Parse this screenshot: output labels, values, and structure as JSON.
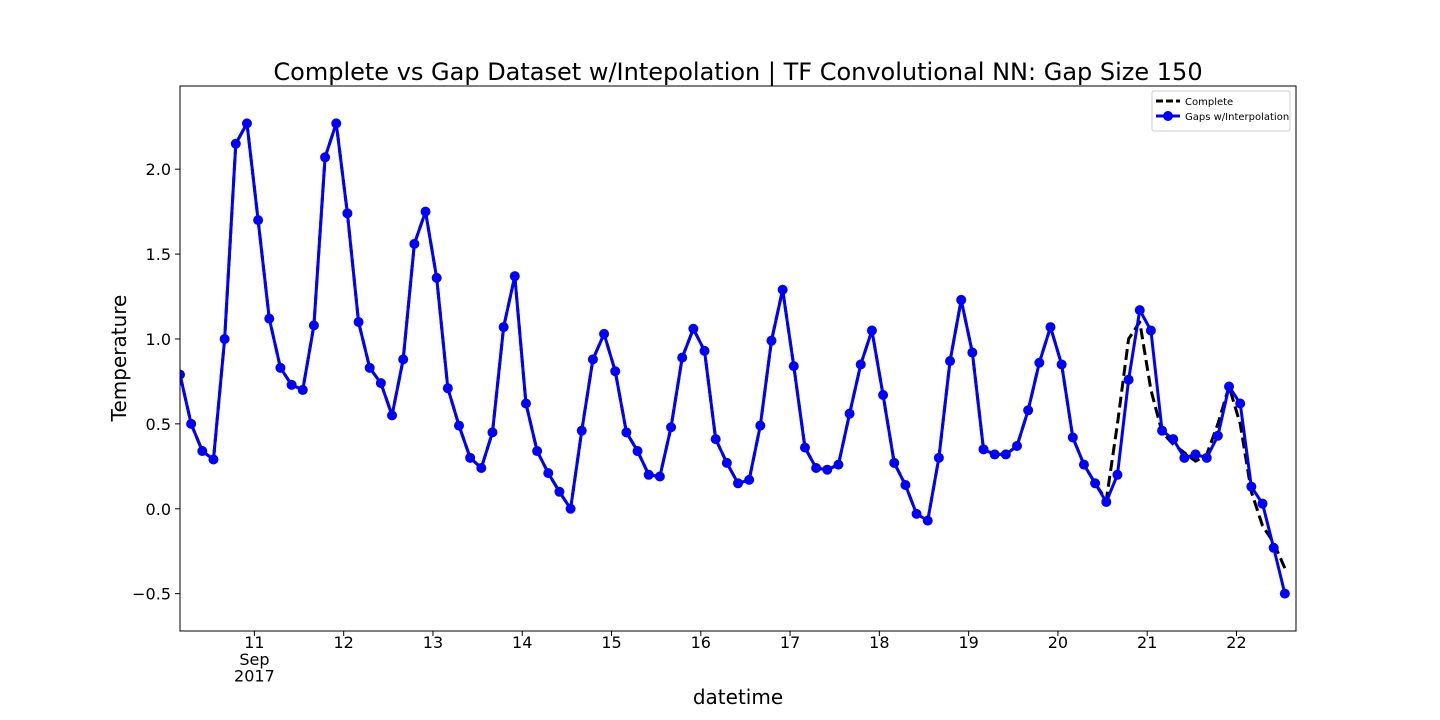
{
  "chart_data": {
    "type": "line",
    "title": "Complete vs Gap Dataset w/Intepolation | TF Convolutional NN: Gap Size 150",
    "x_label": "datetime",
    "y_label": "Temperature",
    "x": [
      "2017-09-10T04:00",
      "2017-09-10T07:00",
      "2017-09-10T10:00",
      "2017-09-10T13:00",
      "2017-09-10T16:00",
      "2017-09-10T19:00",
      "2017-09-10T22:00",
      "2017-09-11T01:00",
      "2017-09-11T04:00",
      "2017-09-11T07:00",
      "2017-09-11T10:00",
      "2017-09-11T13:00",
      "2017-09-11T16:00",
      "2017-09-11T19:00",
      "2017-09-11T22:00",
      "2017-09-12T01:00",
      "2017-09-12T04:00",
      "2017-09-12T07:00",
      "2017-09-12T10:00",
      "2017-09-12T13:00",
      "2017-09-12T16:00",
      "2017-09-12T19:00",
      "2017-09-12T22:00",
      "2017-09-13T01:00",
      "2017-09-13T04:00",
      "2017-09-13T07:00",
      "2017-09-13T10:00",
      "2017-09-13T13:00",
      "2017-09-13T16:00",
      "2017-09-13T19:00",
      "2017-09-13T22:00",
      "2017-09-14T01:00",
      "2017-09-14T04:00",
      "2017-09-14T07:00",
      "2017-09-14T10:00",
      "2017-09-14T13:00",
      "2017-09-14T16:00",
      "2017-09-14T19:00",
      "2017-09-14T22:00",
      "2017-09-15T01:00",
      "2017-09-15T04:00",
      "2017-09-15T07:00",
      "2017-09-15T10:00",
      "2017-09-15T13:00",
      "2017-09-15T16:00",
      "2017-09-15T19:00",
      "2017-09-15T22:00",
      "2017-09-16T01:00",
      "2017-09-16T04:00",
      "2017-09-16T07:00",
      "2017-09-16T10:00",
      "2017-09-16T13:00",
      "2017-09-16T16:00",
      "2017-09-16T19:00",
      "2017-09-16T22:00",
      "2017-09-17T01:00",
      "2017-09-17T04:00",
      "2017-09-17T07:00",
      "2017-09-17T10:00",
      "2017-09-17T13:00",
      "2017-09-17T16:00",
      "2017-09-17T19:00",
      "2017-09-17T22:00",
      "2017-09-18T01:00",
      "2017-09-18T04:00",
      "2017-09-18T07:00",
      "2017-09-18T10:00",
      "2017-09-18T13:00",
      "2017-09-18T16:00",
      "2017-09-18T19:00",
      "2017-09-18T22:00",
      "2017-09-19T01:00",
      "2017-09-19T04:00",
      "2017-09-19T07:00",
      "2017-09-19T10:00",
      "2017-09-19T13:00",
      "2017-09-19T16:00",
      "2017-09-19T19:00",
      "2017-09-19T22:00",
      "2017-09-20T01:00",
      "2017-09-20T04:00",
      "2017-09-20T07:00",
      "2017-09-20T10:00",
      "2017-09-20T13:00",
      "2017-09-20T16:00",
      "2017-09-20T19:00",
      "2017-09-20T22:00",
      "2017-09-21T01:00",
      "2017-09-21T04:00",
      "2017-09-21T07:00",
      "2017-09-21T10:00",
      "2017-09-21T13:00",
      "2017-09-21T16:00",
      "2017-09-21T19:00",
      "2017-09-21T22:00",
      "2017-09-22T01:00",
      "2017-09-22T04:00",
      "2017-09-22T07:00",
      "2017-09-22T10:00",
      "2017-09-22T13:00"
    ],
    "series": [
      {
        "name": "Complete",
        "color": "#000000",
        "style": "dashed",
        "values": [
          0.79,
          0.5,
          0.34,
          0.29,
          1.0,
          2.15,
          2.27,
          1.7,
          1.12,
          0.83,
          0.73,
          0.7,
          1.08,
          2.07,
          2.27,
          1.74,
          1.1,
          0.83,
          0.74,
          0.55,
          0.88,
          1.56,
          1.75,
          1.36,
          0.71,
          0.49,
          0.3,
          0.24,
          0.45,
          1.07,
          1.37,
          0.62,
          0.34,
          0.21,
          0.1,
          0.0,
          0.46,
          0.88,
          1.03,
          0.81,
          0.45,
          0.34,
          0.2,
          0.19,
          0.48,
          0.89,
          1.06,
          0.93,
          0.41,
          0.27,
          0.15,
          0.17,
          0.49,
          0.99,
          1.29,
          0.84,
          0.36,
          0.24,
          0.23,
          0.26,
          0.56,
          0.85,
          1.05,
          0.67,
          0.27,
          0.14,
          -0.03,
          -0.07,
          0.3,
          0.87,
          1.23,
          0.92,
          0.35,
          0.32,
          0.32,
          0.37,
          0.58,
          0.86,
          1.07,
          0.85,
          0.42,
          0.26,
          0.15,
          0.05,
          0.5,
          1.0,
          1.1,
          0.7,
          0.45,
          0.38,
          0.33,
          0.28,
          0.32,
          0.5,
          0.72,
          0.5,
          0.1,
          -0.1,
          -0.2,
          -0.35
        ]
      },
      {
        "name": "Gaps w/Interpolation",
        "color": "#0000ff",
        "style": "solid",
        "markers": true,
        "values": [
          0.79,
          0.5,
          0.34,
          0.29,
          1.0,
          2.15,
          2.27,
          1.7,
          1.12,
          0.83,
          0.73,
          0.7,
          1.08,
          2.07,
          2.27,
          1.74,
          1.1,
          0.83,
          0.74,
          0.55,
          0.88,
          1.56,
          1.75,
          1.36,
          0.71,
          0.49,
          0.3,
          0.24,
          0.45,
          1.07,
          1.37,
          0.62,
          0.34,
          0.21,
          0.1,
          0.0,
          0.46,
          0.88,
          1.03,
          0.81,
          0.45,
          0.34,
          0.2,
          0.19,
          0.48,
          0.89,
          1.06,
          0.93,
          0.41,
          0.27,
          0.15,
          0.17,
          0.49,
          0.99,
          1.29,
          0.84,
          0.36,
          0.24,
          0.23,
          0.26,
          0.56,
          0.85,
          1.05,
          0.67,
          0.27,
          0.14,
          -0.03,
          -0.07,
          0.3,
          0.87,
          1.23,
          0.92,
          0.35,
          0.32,
          0.32,
          0.37,
          0.58,
          0.86,
          1.07,
          0.85,
          0.42,
          0.26,
          0.15,
          0.04,
          0.2,
          0.76,
          1.17,
          1.05,
          0.46,
          0.41,
          0.3,
          0.32,
          0.3,
          0.43,
          0.72,
          0.62,
          0.13,
          0.03,
          -0.23,
          -0.5
        ]
      }
    ],
    "xlim": [
      "2017-09-10T04:00",
      "2017-09-22T16:00"
    ],
    "xticks": [
      {
        "value": "2017-09-11T00:00",
        "label": "11\nSep\n2017"
      },
      {
        "value": "2017-09-12T00:00",
        "label": "12"
      },
      {
        "value": "2017-09-13T00:00",
        "label": "13"
      },
      {
        "value": "2017-09-14T00:00",
        "label": "14"
      },
      {
        "value": "2017-09-15T00:00",
        "label": "15"
      },
      {
        "value": "2017-09-16T00:00",
        "label": "16"
      },
      {
        "value": "2017-09-17T00:00",
        "label": "17"
      },
      {
        "value": "2017-09-18T00:00",
        "label": "18"
      },
      {
        "value": "2017-09-19T00:00",
        "label": "19"
      },
      {
        "value": "2017-09-20T00:00",
        "label": "20"
      },
      {
        "value": "2017-09-21T00:00",
        "label": "21"
      },
      {
        "value": "2017-09-22T00:00",
        "label": "22"
      }
    ],
    "ylim": [
      -0.72,
      2.49
    ],
    "yticks": [
      {
        "value": -0.5,
        "label": "−0.5"
      },
      {
        "value": 0,
        "label": "0.0"
      },
      {
        "value": 0.5,
        "label": "0.5"
      },
      {
        "value": 1,
        "label": "1.0"
      },
      {
        "value": 1.5,
        "label": "1.5"
      },
      {
        "value": 2,
        "label": "2.0"
      }
    ],
    "grid": false,
    "legend": "upper right"
  }
}
